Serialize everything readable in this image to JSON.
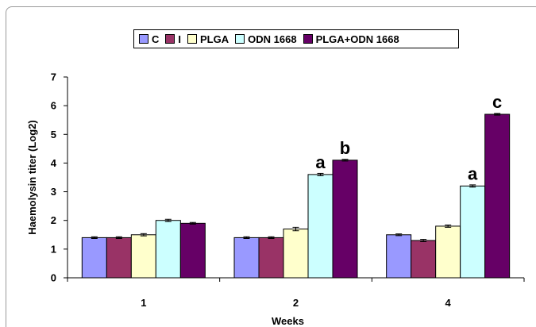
{
  "chart_data": {
    "type": "bar",
    "categories": [
      "1",
      "2",
      "4"
    ],
    "series": [
      {
        "name": "C",
        "color": "#9999ff",
        "values": [
          1.4,
          1.4,
          1.5
        ],
        "errors": [
          0.03,
          0.03,
          0.03
        ]
      },
      {
        "name": "I",
        "color": "#993366",
        "values": [
          1.4,
          1.4,
          1.3
        ],
        "errors": [
          0.03,
          0.03,
          0.04
        ]
      },
      {
        "name": "PLGA",
        "color": "#ffffcc",
        "values": [
          1.5,
          1.7,
          1.8
        ],
        "errors": [
          0.04,
          0.06,
          0.04
        ]
      },
      {
        "name": "ODN 1668",
        "color": "#ccffff",
        "values": [
          2.0,
          3.6,
          3.2
        ],
        "errors": [
          0.04,
          0.04,
          0.04
        ]
      },
      {
        "name": "PLGA+ODN 1668",
        "color": "#660066",
        "values": [
          1.9,
          4.1,
          5.7
        ],
        "errors": [
          0.03,
          0.03,
          0.03
        ]
      }
    ],
    "annotations": [
      {
        "text": "a",
        "category": "2",
        "series": "ODN 1668"
      },
      {
        "text": "b",
        "category": "2",
        "series": "PLGA+ODN 1668"
      },
      {
        "text": "a",
        "category": "4",
        "series": "ODN 1668"
      },
      {
        "text": "c",
        "category": "4",
        "series": "PLGA+ODN 1668"
      }
    ],
    "ylabel": "Haemolysin titer (Log2)",
    "xlabel": "Weeks",
    "ylim": [
      0,
      7
    ],
    "yticks": [
      "0",
      "1",
      "2",
      "3",
      "4",
      "5",
      "6",
      "7"
    ],
    "grid": false,
    "legend_position": "top"
  }
}
